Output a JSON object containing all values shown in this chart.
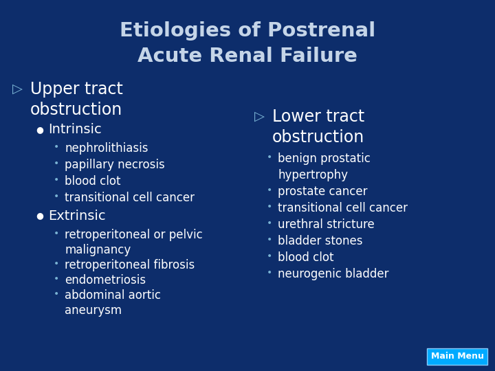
{
  "title_line1": "Etiologies of Postrenal",
  "title_line2": "Acute Renal Failure",
  "bg_color": "#0d2d6b",
  "title_color": "#c5d5e8",
  "text_color": "#ffffff",
  "arrow_color": "#7ab3d4",
  "bullet_sub_color": "#7ab3d4",
  "main_menu_bg": "#00aaff",
  "main_menu_text": "Main Menu",
  "left_header1": "Upper tract",
  "left_header2": "obstruction",
  "right_header1": "Lower tract",
  "right_header2": "obstruction",
  "intrinsic_label": "Intrinsic",
  "extrinsic_label": "Extrinsic",
  "left_sub1_items": [
    "nephrolithiasis",
    "papillary necrosis",
    "blood clot",
    "transitional cell cancer"
  ],
  "left_sub2_items": [
    "retroperitoneal or pelvic",
    "  malignancy",
    "retroperitoneal fibrosis",
    "endometriosis",
    "abdominal aortic",
    "  aneurysm"
  ],
  "right_items": [
    "benign prostatic",
    "  hypertrophy",
    "prostate cancer",
    "transitional cell cancer",
    "urethral stricture",
    "bladder stones",
    "blood clot",
    "neurogenic bladder"
  ],
  "right_items_bullet": [
    true,
    false,
    true,
    true,
    true,
    true,
    true,
    true
  ]
}
